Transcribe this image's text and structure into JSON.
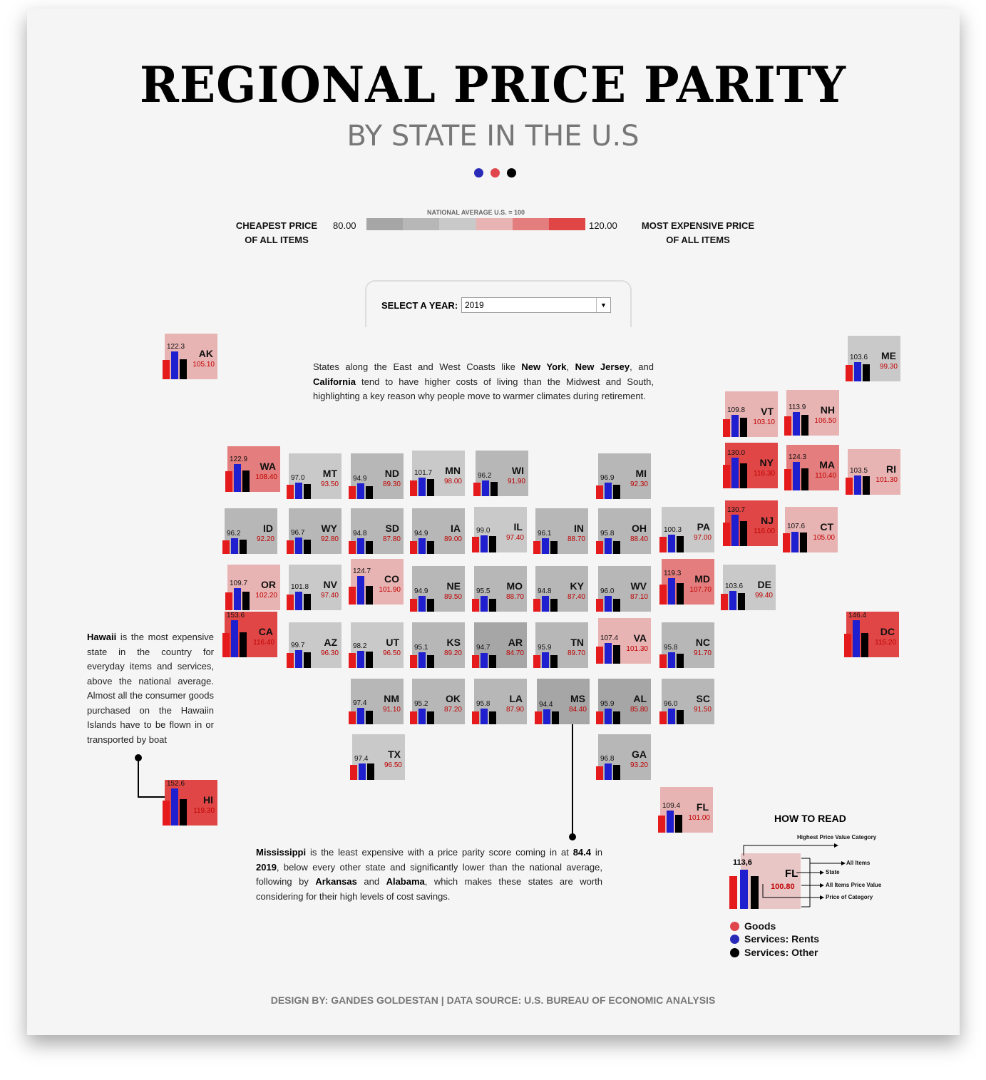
{
  "title": "REGIONAL PRICE PARITY",
  "subtitle": "BY STATE IN THE U.S",
  "accent_colors": {
    "goods": "#e41a1c",
    "rents": "#1f1fd0",
    "other": "#000000"
  },
  "scale": {
    "low_label_1": "CHEAPEST PRICE",
    "low_label_2": "OF ALL ITEMS",
    "high_label_1": "MOST EXPENSIVE PRICE",
    "high_label_2": "OF ALL ITEMS",
    "min": "80.00",
    "max": "120.00",
    "caption": "NATIONAL AVERAGE U.S. = 100",
    "colors": [
      "#a6a6a6",
      "#b7b7b7",
      "#c9c9c9",
      "#e8b3b3",
      "#e47d7d",
      "#e04646"
    ]
  },
  "selector": {
    "label": "SELECT A YEAR:",
    "value": "2019"
  },
  "annotations": {
    "coasts": "States along the East and West Coasts like <b>New York</b>, <b>New Jersey</b>, and <b>California</b> tend to have higher costs of living than the Midwest and South, highlighting a key reason why people move to warmer climates during retirement.",
    "hawaii": "<b>Hawaii</b> is the most expensive state in the country for everyday items and services, above the national average. Almost all the consumer goods purchased on the Hawaiin Islands have to be flown in or transported by boat",
    "mississippi": "<b>Mississippi</b> is the least expensive with a price parity score coming in at <b>84.4</b> in <b>2019</b>, below every other state and significantly lower than the national average, following by <b>Arkansas</b> and <b>Alabama</b>, which makes these states are worth considering for their high levels of cost savings."
  },
  "howto": {
    "title": "HOW TO READ",
    "highest": "Highest Price Value Category",
    "all_items": "All Items",
    "state": "State",
    "all_items_value": "All Items Price Value",
    "price_category": "Price of Category",
    "example_top": "113,6",
    "example_abbr": "FL",
    "example_rpp": "100.80",
    "legend": [
      {
        "label": "Goods",
        "color": "#e0474c"
      },
      {
        "label": "Services: Rents",
        "color": "#2a2ab8"
      },
      {
        "label": "Services: Other",
        "color": "#000000"
      }
    ]
  },
  "footer": "DESIGN BY: GANDES GOLDESTAN | DATA SOURCE: U.S. BUREAU OF ECONOMIC ANALYSIS",
  "chart_data": {
    "type": "bar",
    "year": "2019",
    "series_names": [
      "Goods",
      "Services: Rents",
      "Services: Other"
    ],
    "states": [
      {
        "abbr": "AK",
        "all_items": "105.10",
        "max_category": "122.3"
      },
      {
        "abbr": "ME",
        "all_items": "99.30",
        "max_category": "103.6"
      },
      {
        "abbr": "VT",
        "all_items": "103.10",
        "max_category": "109.8"
      },
      {
        "abbr": "NH",
        "all_items": "106.50",
        "max_category": "113.9"
      },
      {
        "abbr": "WA",
        "all_items": "108.40",
        "max_category": "122.9"
      },
      {
        "abbr": "MT",
        "all_items": "93.50",
        "max_category": "97.0"
      },
      {
        "abbr": "ND",
        "all_items": "89.30",
        "max_category": "94.9"
      },
      {
        "abbr": "MN",
        "all_items": "98.00",
        "max_category": "101.7"
      },
      {
        "abbr": "WI",
        "all_items": "91.90",
        "max_category": "96.2"
      },
      {
        "abbr": "MI",
        "all_items": "92.30",
        "max_category": "96.9"
      },
      {
        "abbr": "NY",
        "all_items": "116.30",
        "max_category": "130.0"
      },
      {
        "abbr": "MA",
        "all_items": "110.40",
        "max_category": "124.3"
      },
      {
        "abbr": "RI",
        "all_items": "101.30",
        "max_category": "103.5"
      },
      {
        "abbr": "ID",
        "all_items": "92.20",
        "max_category": "96.2"
      },
      {
        "abbr": "WY",
        "all_items": "92.80",
        "max_category": "96.7"
      },
      {
        "abbr": "SD",
        "all_items": "87.80",
        "max_category": "94.8"
      },
      {
        "abbr": "IA",
        "all_items": "89.00",
        "max_category": "94.9"
      },
      {
        "abbr": "IL",
        "all_items": "97.40",
        "max_category": "99.0"
      },
      {
        "abbr": "IN",
        "all_items": "88.70",
        "max_category": "96.1"
      },
      {
        "abbr": "OH",
        "all_items": "88.40",
        "max_category": "95.8"
      },
      {
        "abbr": "PA",
        "all_items": "97.00",
        "max_category": "100.3"
      },
      {
        "abbr": "NJ",
        "all_items": "116.00",
        "max_category": "130.7"
      },
      {
        "abbr": "CT",
        "all_items": "105.00",
        "max_category": "107.6"
      },
      {
        "abbr": "OR",
        "all_items": "102.20",
        "max_category": "109.7"
      },
      {
        "abbr": "NV",
        "all_items": "97.40",
        "max_category": "101.8"
      },
      {
        "abbr": "CO",
        "all_items": "101.90",
        "max_category": "124.7"
      },
      {
        "abbr": "NE",
        "all_items": "89.50",
        "max_category": "94.9"
      },
      {
        "abbr": "MO",
        "all_items": "88.70",
        "max_category": "95.5"
      },
      {
        "abbr": "KY",
        "all_items": "87.40",
        "max_category": "94.8"
      },
      {
        "abbr": "WV",
        "all_items": "87.10",
        "max_category": "96.0"
      },
      {
        "abbr": "MD",
        "all_items": "107.70",
        "max_category": "119.3"
      },
      {
        "abbr": "DE",
        "all_items": "99.40",
        "max_category": "103.6"
      },
      {
        "abbr": "CA",
        "all_items": "116.40",
        "max_category": "153.6"
      },
      {
        "abbr": "AZ",
        "all_items": "96.30",
        "max_category": "99.7"
      },
      {
        "abbr": "UT",
        "all_items": "96.50",
        "max_category": "98.2"
      },
      {
        "abbr": "KS",
        "all_items": "89.20",
        "max_category": "95.1"
      },
      {
        "abbr": "AR",
        "all_items": "84.70",
        "max_category": "94.7"
      },
      {
        "abbr": "TN",
        "all_items": "89.70",
        "max_category": "95.9"
      },
      {
        "abbr": "VA",
        "all_items": "101.30",
        "max_category": "107.4"
      },
      {
        "abbr": "NC",
        "all_items": "91.70",
        "max_category": "95.8"
      },
      {
        "abbr": "DC",
        "all_items": "115.20",
        "max_category": "146.4"
      },
      {
        "abbr": "NM",
        "all_items": "91.10",
        "max_category": "97.4"
      },
      {
        "abbr": "OK",
        "all_items": "87.20",
        "max_category": "95.2"
      },
      {
        "abbr": "LA",
        "all_items": "87.90",
        "max_category": "95.8"
      },
      {
        "abbr": "MS",
        "all_items": "84.40",
        "max_category": "94.4"
      },
      {
        "abbr": "AL",
        "all_items": "85.80",
        "max_category": "95.9"
      },
      {
        "abbr": "SC",
        "all_items": "91.50",
        "max_category": "96.0"
      },
      {
        "abbr": "TX",
        "all_items": "96.50",
        "max_category": "97.4"
      },
      {
        "abbr": "GA",
        "all_items": "93.20",
        "max_category": "96.8"
      },
      {
        "abbr": "HI",
        "all_items": "119.30",
        "max_category": "152.6"
      },
      {
        "abbr": "FL",
        "all_items": "101.00",
        "max_category": "109.4"
      }
    ]
  }
}
